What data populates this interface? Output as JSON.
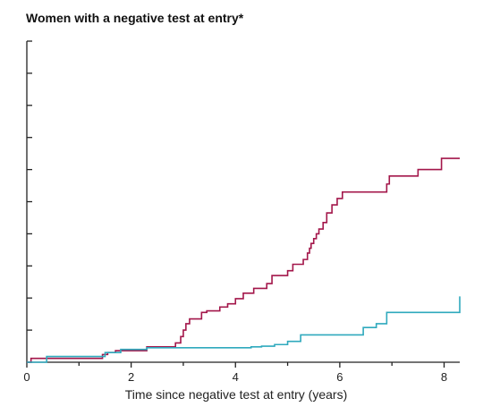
{
  "chart_data": {
    "type": "line",
    "title": "Women with a negative test at entry*",
    "xlabel": "Time since negative test at entry (years)",
    "ylabel": "",
    "xlim": [
      0,
      8.3
    ],
    "ylim": [
      0,
      10
    ],
    "x_ticks": [
      0,
      2,
      4,
      6,
      8
    ],
    "x_minor_ticks": [
      1,
      3,
      5,
      7
    ],
    "y_ticks": [
      0,
      1,
      2,
      3,
      4,
      5,
      6,
      7,
      8,
      9,
      10
    ],
    "y_tick_labels_shown": false,
    "grid": false,
    "series": [
      {
        "color": "#a3164a",
        "style": "step",
        "points": [
          [
            0,
            0
          ],
          [
            0.08,
            0.12
          ],
          [
            1.4,
            0.12
          ],
          [
            1.45,
            0.24
          ],
          [
            1.55,
            0.3
          ],
          [
            1.7,
            0.36
          ],
          [
            2.3,
            0.48
          ],
          [
            2.85,
            0.6
          ],
          [
            2.95,
            0.8
          ],
          [
            3.0,
            1.0
          ],
          [
            3.05,
            1.2
          ],
          [
            3.12,
            1.35
          ],
          [
            3.35,
            1.55
          ],
          [
            3.45,
            1.6
          ],
          [
            3.7,
            1.72
          ],
          [
            3.85,
            1.82
          ],
          [
            4.0,
            1.98
          ],
          [
            4.15,
            2.15
          ],
          [
            4.35,
            2.3
          ],
          [
            4.6,
            2.45
          ],
          [
            4.7,
            2.7
          ],
          [
            5.0,
            2.85
          ],
          [
            5.1,
            3.05
          ],
          [
            5.3,
            3.2
          ],
          [
            5.38,
            3.4
          ],
          [
            5.42,
            3.55
          ],
          [
            5.45,
            3.7
          ],
          [
            5.5,
            3.85
          ],
          [
            5.55,
            4.0
          ],
          [
            5.6,
            4.15
          ],
          [
            5.68,
            4.35
          ],
          [
            5.75,
            4.65
          ],
          [
            5.85,
            4.9
          ],
          [
            5.95,
            5.1
          ],
          [
            6.05,
            5.3
          ],
          [
            6.9,
            5.55
          ],
          [
            6.95,
            5.8
          ],
          [
            7.5,
            6.0
          ],
          [
            7.95,
            6.35
          ],
          [
            8.3,
            6.35
          ]
        ]
      },
      {
        "color": "#2fa9bd",
        "style": "step",
        "points": [
          [
            0,
            0
          ],
          [
            0.38,
            0.18
          ],
          [
            1.4,
            0.18
          ],
          [
            1.5,
            0.3
          ],
          [
            1.8,
            0.4
          ],
          [
            2.3,
            0.45
          ],
          [
            4.25,
            0.45
          ],
          [
            4.3,
            0.48
          ],
          [
            4.5,
            0.5
          ],
          [
            4.75,
            0.55
          ],
          [
            5.0,
            0.65
          ],
          [
            5.25,
            0.85
          ],
          [
            6.38,
            0.85
          ],
          [
            6.45,
            1.08
          ],
          [
            6.7,
            1.2
          ],
          [
            6.9,
            1.55
          ],
          [
            8.25,
            1.55
          ],
          [
            8.3,
            2.05
          ]
        ]
      }
    ]
  }
}
